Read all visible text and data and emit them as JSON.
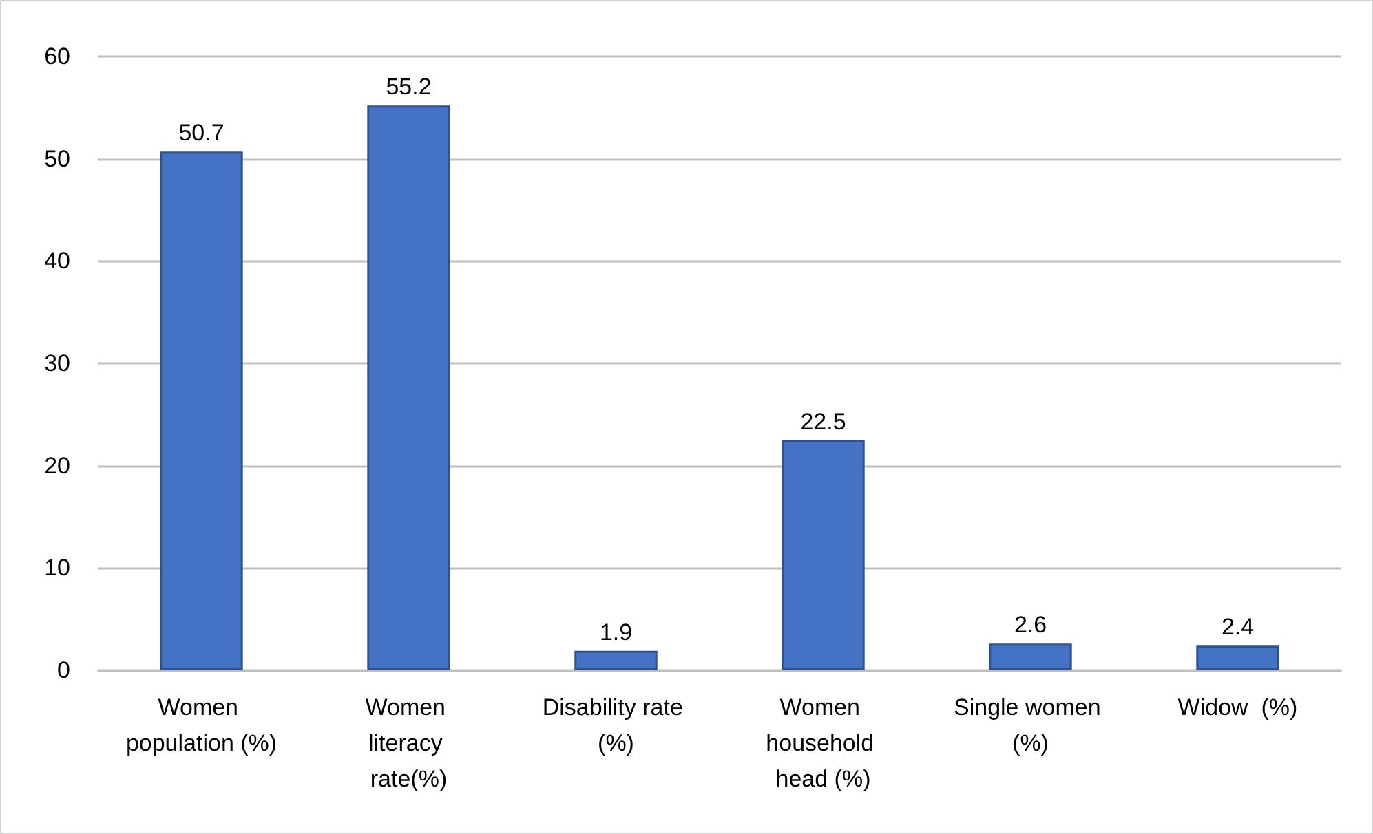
{
  "chart_data": {
    "type": "bar",
    "categories": [
      "Women population (%)",
      "Women literacy rate(%)",
      "Disability rate (%)",
      "Women household head (%)",
      "Single women (%)",
      "Widow  (%)"
    ],
    "values": [
      50.7,
      55.2,
      1.9,
      22.5,
      2.6,
      2.4
    ],
    "color": "#4472c4",
    "ylim": [
      0,
      60
    ],
    "yticks": [
      0,
      10,
      20,
      30,
      40,
      50,
      60
    ],
    "grid": "y",
    "data_labels": true
  }
}
